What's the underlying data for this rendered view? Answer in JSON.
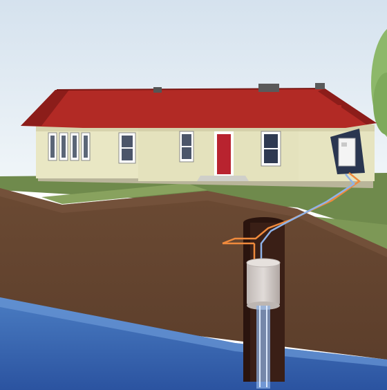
{
  "scene": {
    "subject": "house-with-geothermal-well",
    "colors": {
      "sky_top": "#d9e6f0",
      "sky_bottom": "#eef4f8",
      "roof": "#b22a25",
      "roof_dark": "#8c1d1a",
      "wall": "#e8e6c4",
      "wall_shadow": "#cfcba4",
      "door": "#b8232f",
      "grass": "#6f8a4c",
      "grass_light": "#8aa463",
      "soil": "#6a4a34",
      "soil_dark": "#5a3d2a",
      "well_shaft": "#3a1f16",
      "water": "#3f6fb6",
      "water_dark": "#2d56a0",
      "pipe_hot": "#f08a3c",
      "pipe_cold": "#8fb3e8",
      "tree": "#8db86a"
    }
  }
}
